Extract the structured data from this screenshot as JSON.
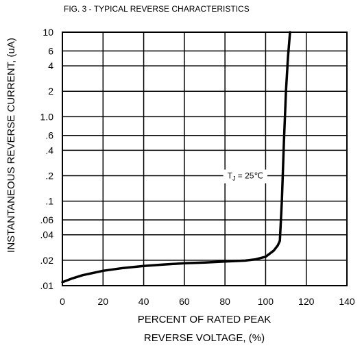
{
  "chart_data": {
    "type": "line",
    "title": "FIG. 3 - TYPICAL REVERSE CHARACTERISTICS",
    "xlabel_line1": "PERCENT OF RATED PEAK",
    "xlabel_line2": "REVERSE VOLTAGE, (%)",
    "ylabel": "INSTANTANEOUS REVERSE CURRENT, (uA)",
    "x_scale": "linear",
    "y_scale": "log",
    "xlim": [
      0,
      140
    ],
    "ylim": [
      0.01,
      10
    ],
    "grid": true,
    "x_ticks": [
      0,
      20,
      40,
      60,
      80,
      100,
      120,
      140
    ],
    "x_tick_labels": [
      "0",
      "20",
      "40",
      "60",
      "80",
      "100",
      "120",
      "140"
    ],
    "y_ticks": [
      0.01,
      0.02,
      0.04,
      0.06,
      0.1,
      0.2,
      0.4,
      0.6,
      1.0,
      2,
      4,
      6,
      10
    ],
    "y_tick_labels": [
      ".01",
      ".02",
      ".04",
      ".06",
      ".1",
      ".2",
      ".4",
      ".6",
      "1.0",
      "2",
      "4",
      "6",
      "10"
    ],
    "annotation": {
      "label": "T",
      "subscript": "J",
      "suffix": " = 25℃",
      "x": 90,
      "y": 0.2
    },
    "series": [
      {
        "x": [
          0,
          5,
          10,
          20,
          30,
          40,
          50,
          60,
          70,
          80,
          90,
          95,
          100,
          104,
          106,
          107,
          108,
          109,
          110,
          111,
          112
        ],
        "y": [
          0.011,
          0.0122,
          0.0133,
          0.015,
          0.0162,
          0.0171,
          0.0178,
          0.0184,
          0.0188,
          0.0193,
          0.0198,
          0.0205,
          0.022,
          0.026,
          0.03,
          0.034,
          0.1,
          0.5,
          2.0,
          5.0,
          10
        ]
      }
    ]
  }
}
